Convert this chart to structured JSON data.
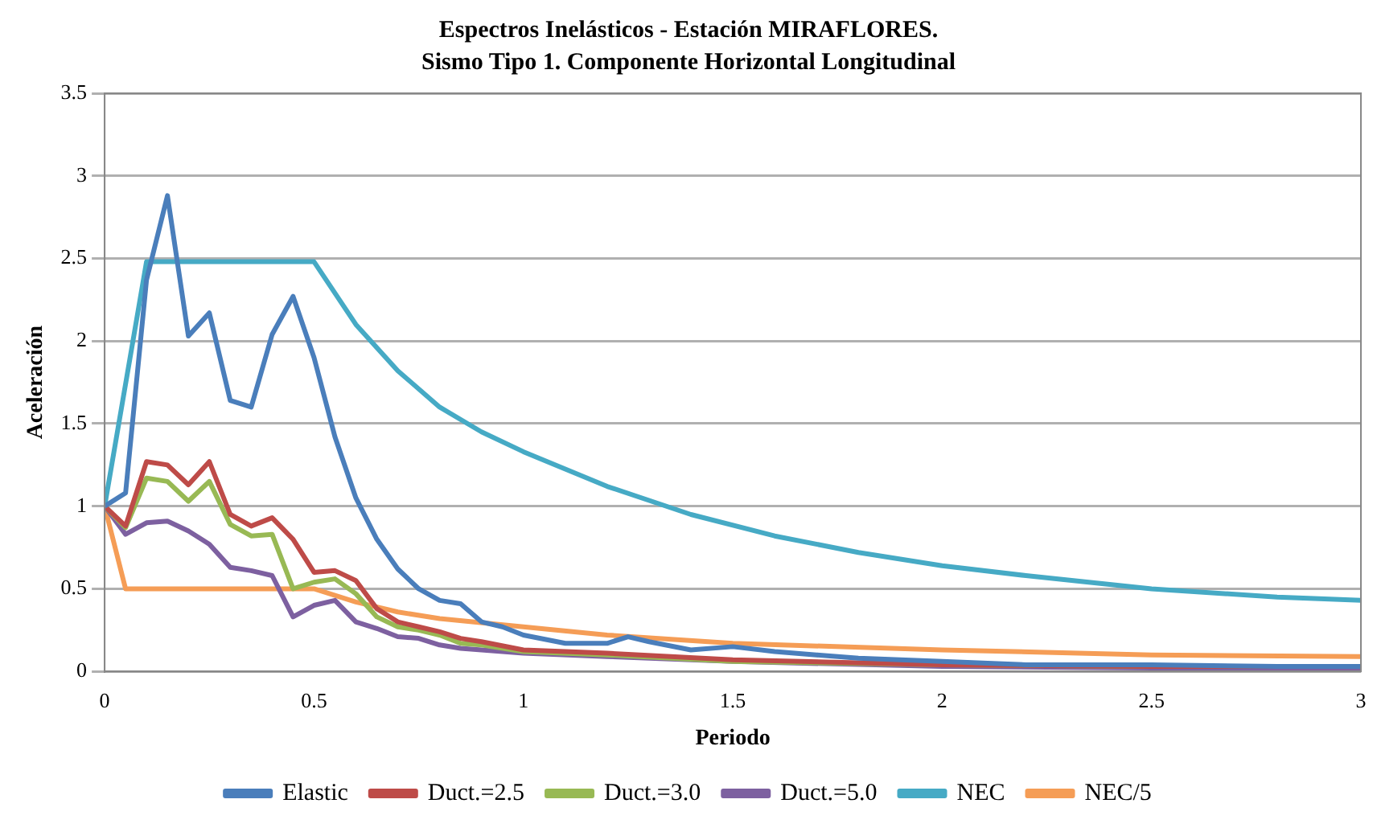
{
  "chart_data": {
    "type": "line",
    "title": "Espectros Inelásticos - Estación MIRAFLORES.",
    "subtitle": "Sismo Tipo 1. Componente Horizontal Longitudinal",
    "xlabel": "Periodo",
    "ylabel": "Aceleración",
    "xlim": [
      0,
      3
    ],
    "xticks": [
      0,
      0.5,
      1,
      1.5,
      2,
      2.5,
      3
    ],
    "ylim": [
      0,
      3.5
    ],
    "yticks": [
      0,
      0.5,
      1,
      1.5,
      2,
      2.5,
      3,
      3.5
    ],
    "grid": "y",
    "legend": "bottom",
    "marker": "none",
    "line_style": "solid",
    "series": [
      {
        "name": "Elastic",
        "color": "#4a7ebb",
        "x": [
          0,
          0.05,
          0.1,
          0.15,
          0.2,
          0.25,
          0.3,
          0.35,
          0.4,
          0.45,
          0.5,
          0.55,
          0.6,
          0.65,
          0.7,
          0.75,
          0.8,
          0.85,
          0.9,
          0.95,
          1,
          1.1,
          1.2,
          1.25,
          1.3,
          1.4,
          1.5,
          1.6,
          1.7,
          1.8,
          1.9,
          2,
          2.2,
          2.5,
          2.8,
          3
        ],
        "values": [
          1,
          1.08,
          2.37,
          2.88,
          2.03,
          2.17,
          1.64,
          1.6,
          2.04,
          2.27,
          1.9,
          1.42,
          1.05,
          0.8,
          0.62,
          0.5,
          0.43,
          0.41,
          0.3,
          0.27,
          0.22,
          0.17,
          0.17,
          0.21,
          0.18,
          0.13,
          0.15,
          0.12,
          0.1,
          0.08,
          0.07,
          0.06,
          0.04,
          0.04,
          0.03,
          0.03
        ]
      },
      {
        "name": "Duct.=2.5",
        "color": "#be4b48",
        "x": [
          0,
          0.05,
          0.1,
          0.15,
          0.2,
          0.25,
          0.3,
          0.35,
          0.4,
          0.45,
          0.5,
          0.55,
          0.6,
          0.65,
          0.7,
          0.75,
          0.8,
          0.85,
          0.9,
          1,
          1.2,
          1.5,
          2,
          2.5,
          3
        ],
        "values": [
          1,
          0.88,
          1.27,
          1.25,
          1.13,
          1.27,
          0.95,
          0.88,
          0.93,
          0.8,
          0.6,
          0.61,
          0.55,
          0.38,
          0.3,
          0.27,
          0.24,
          0.2,
          0.18,
          0.13,
          0.11,
          0.07,
          0.04,
          0.03,
          0.03
        ]
      },
      {
        "name": "Duct.=3.0",
        "color": "#98b954",
        "x": [
          0,
          0.05,
          0.1,
          0.15,
          0.2,
          0.25,
          0.3,
          0.35,
          0.4,
          0.45,
          0.5,
          0.55,
          0.6,
          0.65,
          0.7,
          0.75,
          0.8,
          0.85,
          0.9,
          1,
          1.2,
          1.5,
          2,
          2.5,
          3
        ],
        "values": [
          1,
          0.87,
          1.17,
          1.15,
          1.03,
          1.15,
          0.89,
          0.82,
          0.83,
          0.5,
          0.54,
          0.56,
          0.47,
          0.33,
          0.27,
          0.25,
          0.22,
          0.17,
          0.16,
          0.12,
          0.1,
          0.06,
          0.04,
          0.03,
          0.03
        ]
      },
      {
        "name": "Duct.=5.0",
        "color": "#7d60a0",
        "x": [
          0,
          0.05,
          0.1,
          0.15,
          0.2,
          0.25,
          0.3,
          0.35,
          0.4,
          0.45,
          0.5,
          0.55,
          0.6,
          0.65,
          0.7,
          0.75,
          0.8,
          0.85,
          0.9,
          1,
          1.2,
          1.5,
          2,
          2.5,
          3
        ],
        "values": [
          1,
          0.83,
          0.9,
          0.91,
          0.85,
          0.77,
          0.63,
          0.61,
          0.58,
          0.33,
          0.4,
          0.43,
          0.3,
          0.26,
          0.21,
          0.2,
          0.16,
          0.14,
          0.13,
          0.11,
          0.09,
          0.06,
          0.03,
          0.02,
          0.02
        ]
      },
      {
        "name": "NEC",
        "color": "#46aac5",
        "x": [
          0,
          0.1,
          0.5,
          0.6,
          0.7,
          0.8,
          0.9,
          1,
          1.2,
          1.4,
          1.6,
          1.8,
          2,
          2.2,
          2.5,
          2.8,
          3
        ],
        "values": [
          1,
          2.48,
          2.48,
          2.1,
          1.82,
          1.6,
          1.45,
          1.33,
          1.12,
          0.95,
          0.82,
          0.72,
          0.64,
          0.58,
          0.5,
          0.45,
          0.43
        ]
      },
      {
        "name": "NEC/5",
        "color": "#f59d56",
        "x": [
          0,
          0.05,
          0.5,
          0.6,
          0.7,
          0.8,
          1,
          1.2,
          1.5,
          2,
          2.5,
          3
        ],
        "values": [
          1,
          0.5,
          0.5,
          0.42,
          0.36,
          0.32,
          0.27,
          0.22,
          0.17,
          0.13,
          0.1,
          0.09
        ]
      }
    ]
  }
}
